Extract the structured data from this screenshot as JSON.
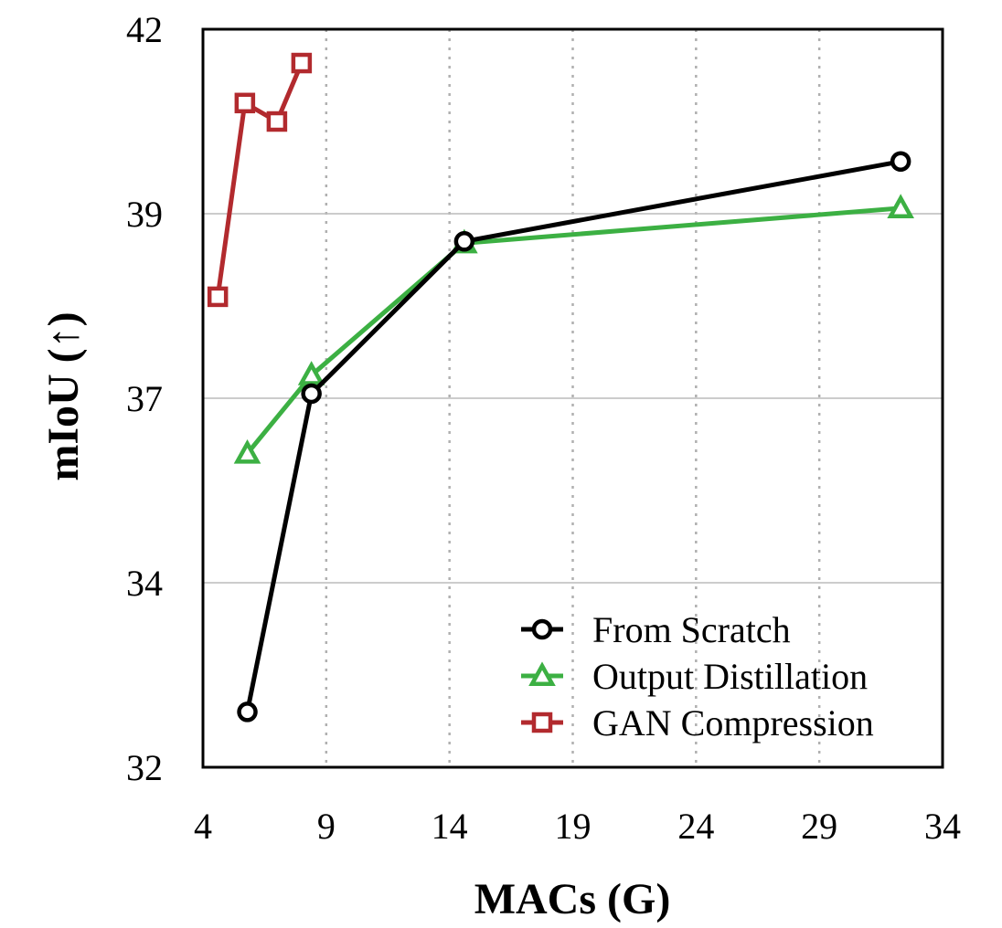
{
  "chart_data": {
    "type": "line",
    "xlabel": "MACs (G)",
    "ylabel": "mIoU (↑)",
    "xlim": [
      4,
      34
    ],
    "ylim": [
      32,
      42
    ],
    "x_ticks": [
      4,
      9,
      14,
      19,
      24,
      29,
      34
    ],
    "x_tick_labels": [
      "4",
      "9",
      "14",
      "19",
      "24",
      "29",
      "34"
    ],
    "y_ticks": [
      32,
      34,
      37,
      39,
      42
    ],
    "y_tick_labels": [
      "32",
      "34",
      "37",
      "39",
      "42"
    ],
    "grid": {
      "vertical": "dotted",
      "horizontal": "solid"
    },
    "legend_position": "bottom-right",
    "series": [
      {
        "name": "From Scratch",
        "color": "#000000",
        "marker": "circle",
        "points": [
          [
            5.8,
            32.6
          ],
          [
            8.4,
            37.05
          ],
          [
            14.6,
            38.7
          ],
          [
            32.3,
            39.85
          ]
        ]
      },
      {
        "name": "Output Distillation",
        "color": "#3cb043",
        "marker": "triangle",
        "points": [
          [
            5.8,
            36.1
          ],
          [
            8.4,
            37.25
          ],
          [
            14.6,
            38.68
          ],
          [
            32.3,
            39.09
          ]
        ]
      },
      {
        "name": "GAN Compression",
        "color": "#b22a2e",
        "marker": "square",
        "points": [
          [
            4.6,
            38.1
          ],
          [
            5.7,
            40.8
          ],
          [
            7.0,
            40.5
          ],
          [
            8.0,
            41.45
          ]
        ]
      }
    ]
  }
}
